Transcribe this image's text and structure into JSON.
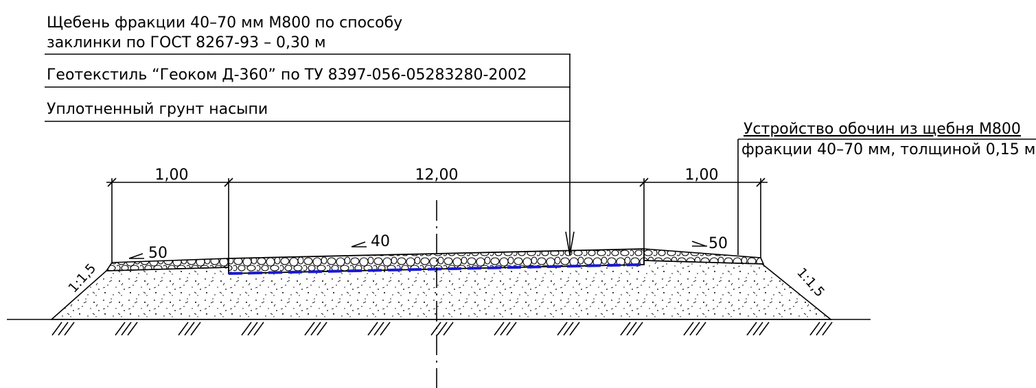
{
  "callouts": [
    {
      "lines": [
        "Щебень фракции 40–70 мм М800 по способу",
        "заклинки по ГОСТ 8267-93 – 0,30 м"
      ]
    },
    {
      "lines": [
        "Геотекстиль “Геоком Д-360” по ТУ 8397-056-05283280-2002"
      ]
    },
    {
      "lines": [
        "Уплотненный грунт насыпи"
      ]
    }
  ],
  "shoulder_note": {
    "lines": [
      "Устройство обочин из щебня М800",
      "фракции 40–70 мм, толщиной 0,15 м"
    ]
  },
  "dimensions": [
    "1,00",
    "12,00",
    "1,00"
  ],
  "slopes": [
    "50",
    "40",
    "50"
  ],
  "side_slopes": [
    "1:1,5",
    "1:1,5"
  ]
}
